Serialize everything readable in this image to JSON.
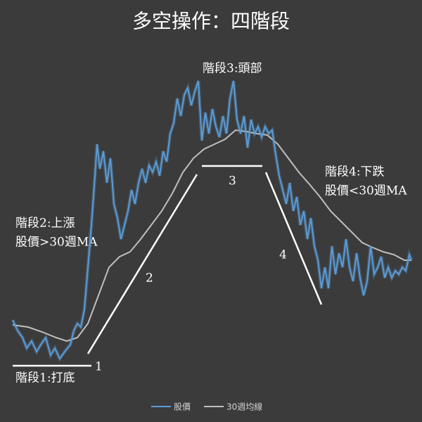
{
  "chart_data": {
    "type": "line",
    "title": "多空操作：四階段",
    "xlim": [
      0,
      600
    ],
    "ylim": [
      40,
      530
    ],
    "series": [
      {
        "name": "股價",
        "color": "#5b9bd5",
        "x": [
          18,
          25,
          32,
          38,
          45,
          52,
          58,
          65,
          72,
          78,
          85,
          92,
          100,
          105,
          110,
          115,
          120,
          125,
          130,
          135,
          138,
          142,
          147,
          152,
          157,
          162,
          167,
          172,
          177,
          182,
          187,
          192,
          197,
          202,
          207,
          212,
          217,
          222,
          227,
          232,
          237,
          242,
          247,
          252,
          257,
          262,
          267,
          272,
          277,
          282,
          287,
          292,
          297,
          302,
          307,
          312,
          317,
          322,
          327,
          332,
          337,
          342,
          347,
          352,
          357,
          362,
          367,
          372,
          377,
          382,
          387,
          392,
          397,
          402,
          407,
          412,
          417,
          422,
          427,
          432,
          437,
          442,
          447,
          452,
          457,
          462,
          467,
          472,
          477,
          482,
          487,
          492,
          497,
          502,
          507,
          512,
          517,
          522,
          527,
          532,
          537,
          542,
          547,
          552,
          557,
          562,
          567,
          572,
          577,
          582,
          585
        ],
        "values": [
          145,
          130,
          120,
          105,
          115,
          100,
          110,
          120,
          95,
          105,
          90,
          100,
          110,
          130,
          140,
          135,
          160,
          220,
          280,
          350,
          395,
          360,
          385,
          340,
          375,
          310,
          290,
          260,
          280,
          300,
          330,
          310,
          340,
          360,
          340,
          365,
          355,
          370,
          350,
          385,
          370,
          410,
          425,
          460,
          435,
          465,
          475,
          450,
          470,
          485,
          400,
          440,
          410,
          445,
          420,
          405,
          435,
          410,
          460,
          485,
          430,
          410,
          435,
          390,
          430,
          410,
          420,
          405,
          420,
          410,
          415,
          380,
          350,
          330,
          310,
          340,
          300,
          320,
          280,
          300,
          260,
          290,
          250,
          230,
          190,
          220,
          190,
          250,
          210,
          240,
          220,
          260,
          220,
          200,
          240,
          205,
          180,
          200,
          250,
          210,
          220,
          235,
          205,
          220,
          205,
          215,
          210,
          220,
          215,
          238,
          230
        ]
      },
      {
        "name": "30週均線",
        "color": "#bfbfbf",
        "x": [
          18,
          40,
          60,
          80,
          95,
          110,
          125,
          140,
          155,
          170,
          185,
          200,
          215,
          230,
          245,
          260,
          275,
          290,
          305,
          320,
          335,
          350,
          365,
          380,
          395,
          410,
          425,
          440,
          455,
          470,
          485,
          500,
          515,
          530,
          545,
          560,
          575,
          585
        ],
        "values": [
          138,
          135,
          128,
          120,
          115,
          120,
          140,
          180,
          220,
          235,
          242,
          260,
          280,
          300,
          325,
          355,
          375,
          388,
          395,
          402,
          415,
          413,
          410,
          408,
          395,
          375,
          355,
          338,
          320,
          300,
          285,
          270,
          255,
          248,
          242,
          238,
          230,
          230
        ]
      }
    ],
    "annotations": [
      "階段3:頭部",
      "階段2:上漲",
      "股價>30週MA",
      "階段4:下跌",
      "股價<30週MA",
      "階段1:打底",
      "1",
      "2",
      "3",
      "4"
    ]
  }
}
